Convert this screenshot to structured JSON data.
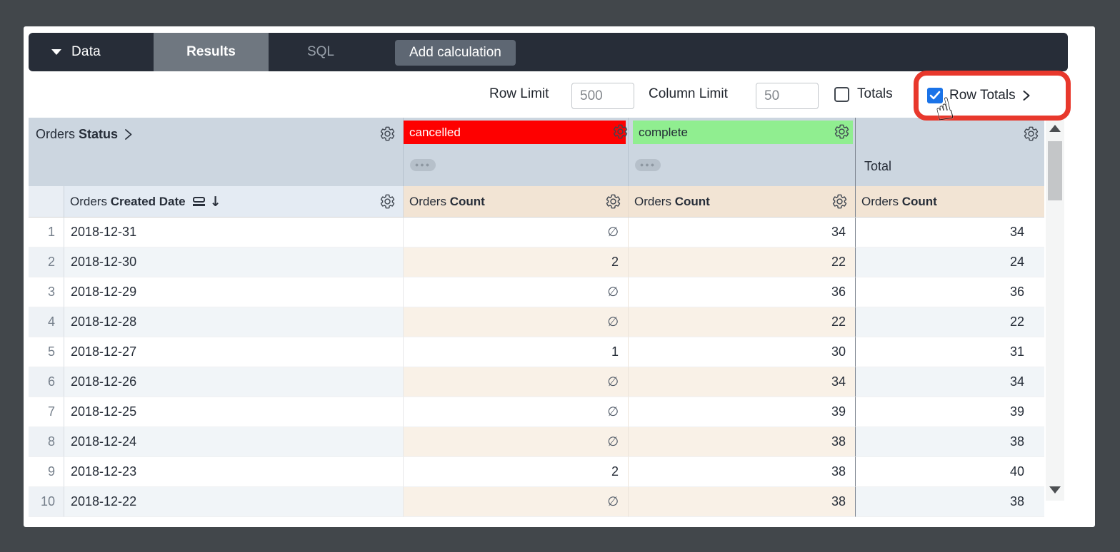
{
  "toolbar": {
    "data_menu_label": "Data",
    "tabs": [
      {
        "label": "Results",
        "active": true
      },
      {
        "label": "SQL",
        "active": false
      }
    ],
    "add_calculation_label": "Add calculation"
  },
  "controls": {
    "row_limit": {
      "label": "Row Limit",
      "value": "500"
    },
    "column_limit": {
      "label": "Column Limit",
      "value": "50"
    },
    "totals": {
      "label": "Totals",
      "checked": false
    },
    "row_totals": {
      "label": "Row Totals",
      "checked": true,
      "chevron": "›"
    }
  },
  "table": {
    "pivot_field": {
      "prefix": "Orders",
      "name": "Status"
    },
    "dimension_field": {
      "prefix": "Orders",
      "name": "Created Date"
    },
    "measure_field": {
      "prefix": "Orders",
      "name": "Count"
    },
    "pivot_values": [
      {
        "label": "cancelled",
        "bg": "#fe0000",
        "fg": "#ffffff"
      },
      {
        "label": "complete",
        "bg": "#90ee90",
        "fg": "#222a35"
      }
    ],
    "total_column_label": "Total",
    "ellipsis_button": "●●●",
    "null_symbol": "∅",
    "rows": [
      {
        "n": "1",
        "date": "2018-12-31",
        "cancelled": "∅",
        "complete": "34",
        "total": "34"
      },
      {
        "n": "2",
        "date": "2018-12-30",
        "cancelled": "2",
        "complete": "22",
        "total": "24"
      },
      {
        "n": "3",
        "date": "2018-12-29",
        "cancelled": "∅",
        "complete": "36",
        "total": "36"
      },
      {
        "n": "4",
        "date": "2018-12-28",
        "cancelled": "∅",
        "complete": "22",
        "total": "22"
      },
      {
        "n": "5",
        "date": "2018-12-27",
        "cancelled": "1",
        "complete": "30",
        "total": "31"
      },
      {
        "n": "6",
        "date": "2018-12-26",
        "cancelled": "∅",
        "complete": "34",
        "total": "34"
      },
      {
        "n": "7",
        "date": "2018-12-25",
        "cancelled": "∅",
        "complete": "39",
        "total": "39"
      },
      {
        "n": "8",
        "date": "2018-12-24",
        "cancelled": "∅",
        "complete": "38",
        "total": "38"
      },
      {
        "n": "9",
        "date": "2018-12-23",
        "cancelled": "2",
        "complete": "38",
        "total": "40"
      },
      {
        "n": "10",
        "date": "2018-12-22",
        "cancelled": "∅",
        "complete": "38",
        "total": "38",
        "partial": true
      }
    ]
  },
  "icons": {
    "hand_cursor": "☝"
  },
  "colors": {
    "annotation_red": "#e8382c",
    "checkbox_blue": "#1a73e8",
    "pivot_cancelled_bg": "#fe0000",
    "pivot_complete_bg": "#90ee90",
    "header_blue": "#ccd6e0",
    "measure_header_beige": "#f2e4d4",
    "topbar_dark": "#272d38"
  }
}
